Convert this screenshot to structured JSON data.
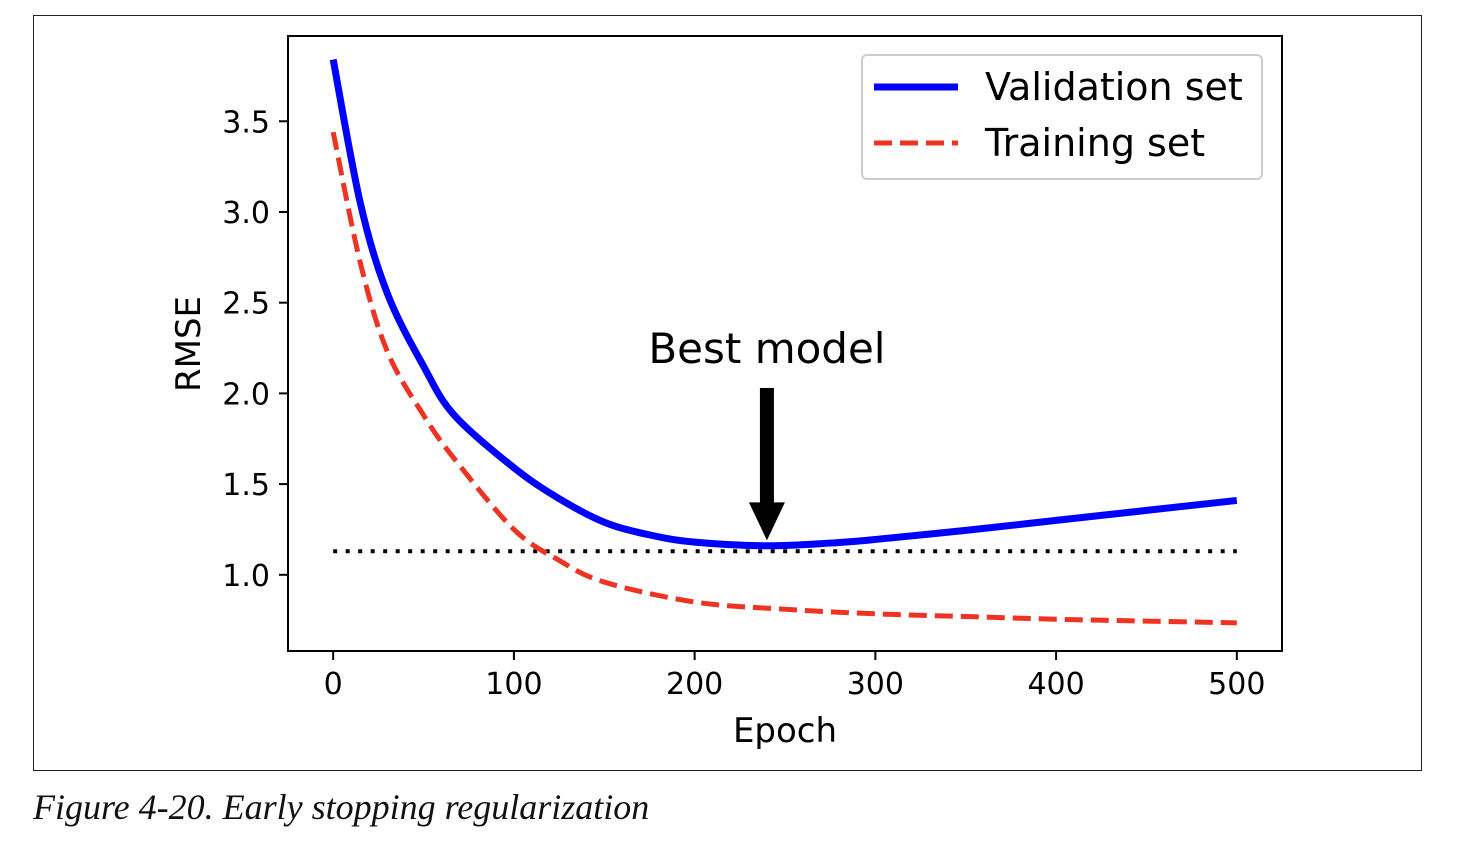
{
  "chart_data": {
    "type": "line",
    "xlabel": "Epoch",
    "ylabel": "RMSE",
    "xlim": [
      -25,
      525
    ],
    "ylim": [
      0.58,
      3.97
    ],
    "xticks": [
      0,
      100,
      200,
      300,
      400,
      500
    ],
    "yticks": [
      1.0,
      1.5,
      2.0,
      2.5,
      3.0,
      3.5
    ],
    "xtick_labels": [
      "0",
      "100",
      "200",
      "300",
      "400",
      "500"
    ],
    "ytick_labels": [
      "1.0",
      "1.5",
      "2.0",
      "2.5",
      "3.0",
      "3.5"
    ],
    "grid": false,
    "legend_position": "top-right",
    "series": [
      {
        "name": "Validation set",
        "color": "#0000ff",
        "style": "solid",
        "x": [
          0,
          15,
          30,
          50,
          67,
          100,
          125,
          150,
          175,
          200,
          240,
          275,
          300,
          350,
          400,
          450,
          500
        ],
        "y": [
          3.84,
          3.05,
          2.55,
          2.15,
          1.88,
          1.59,
          1.42,
          1.29,
          1.22,
          1.18,
          1.16,
          1.175,
          1.195,
          1.245,
          1.3,
          1.355,
          1.41
        ]
      },
      {
        "name": "Training set",
        "color": "#ee3322",
        "style": "dashed",
        "x": [
          0,
          15,
          30,
          50,
          67,
          100,
          125,
          150,
          200,
          250,
          300,
          350,
          400,
          450,
          500
        ],
        "y": [
          3.44,
          2.72,
          2.23,
          1.88,
          1.64,
          1.25,
          1.08,
          0.96,
          0.85,
          0.81,
          0.785,
          0.77,
          0.755,
          0.745,
          0.735
        ]
      }
    ],
    "reference_line": {
      "y": 1.13,
      "x_range": [
        0,
        500
      ],
      "style": "dotted",
      "color": "#000000"
    },
    "annotation": {
      "text": "Best model",
      "text_xy": [
        240,
        2.25
      ],
      "arrow_from": [
        240,
        2.03
      ],
      "arrow_to": [
        240,
        1.19
      ]
    }
  },
  "caption": "Figure 4-20. Early stopping regularization"
}
